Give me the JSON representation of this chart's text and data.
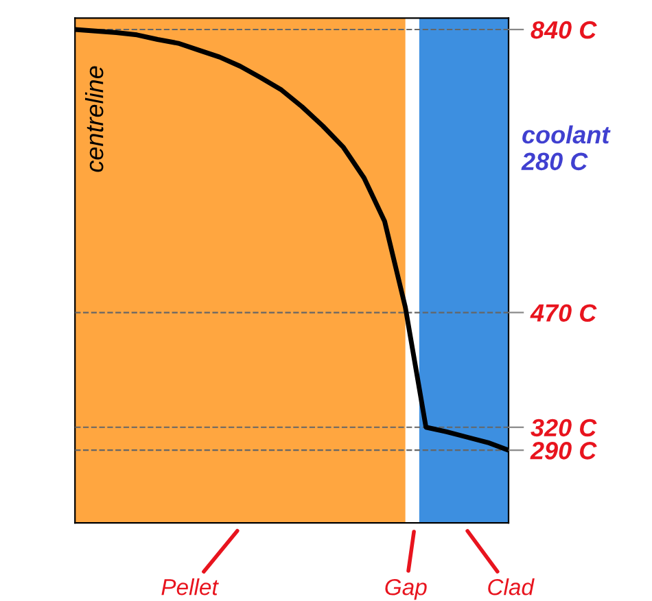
{
  "chart_data": {
    "type": "line",
    "categories": [
      null,
      null,
      null,
      null,
      null,
      null,
      null,
      null,
      null,
      null,
      null,
      null,
      null,
      null,
      null,
      null,
      null,
      null,
      null,
      null,
      null,
      null
    ],
    "series": [
      {
        "color": "#000000",
        "values": [
          840,
          838,
          836,
          833,
          827,
          822,
          813,
          804,
          792,
          777,
          761,
          739,
          714,
          686,
          646,
          589,
          477,
          320,
          314,
          307,
          300,
          290
        ]
      }
    ],
    "ylim": [
      195,
      855
    ],
    "yticks": [
      {
        "value": 840,
        "label": "840 C"
      },
      {
        "value": 470,
        "label": "470 C"
      },
      {
        "value": 320,
        "label": "320 C"
      },
      {
        "value": 290,
        "label": "290 C"
      }
    ],
    "grid": "y",
    "marker": "none",
    "line_style": "solid",
    "tick_labels": "y",
    "annotations": [
      "centreline",
      "coolant\n280 C",
      "Pellet",
      "Gap",
      "Clad"
    ]
  }
}
